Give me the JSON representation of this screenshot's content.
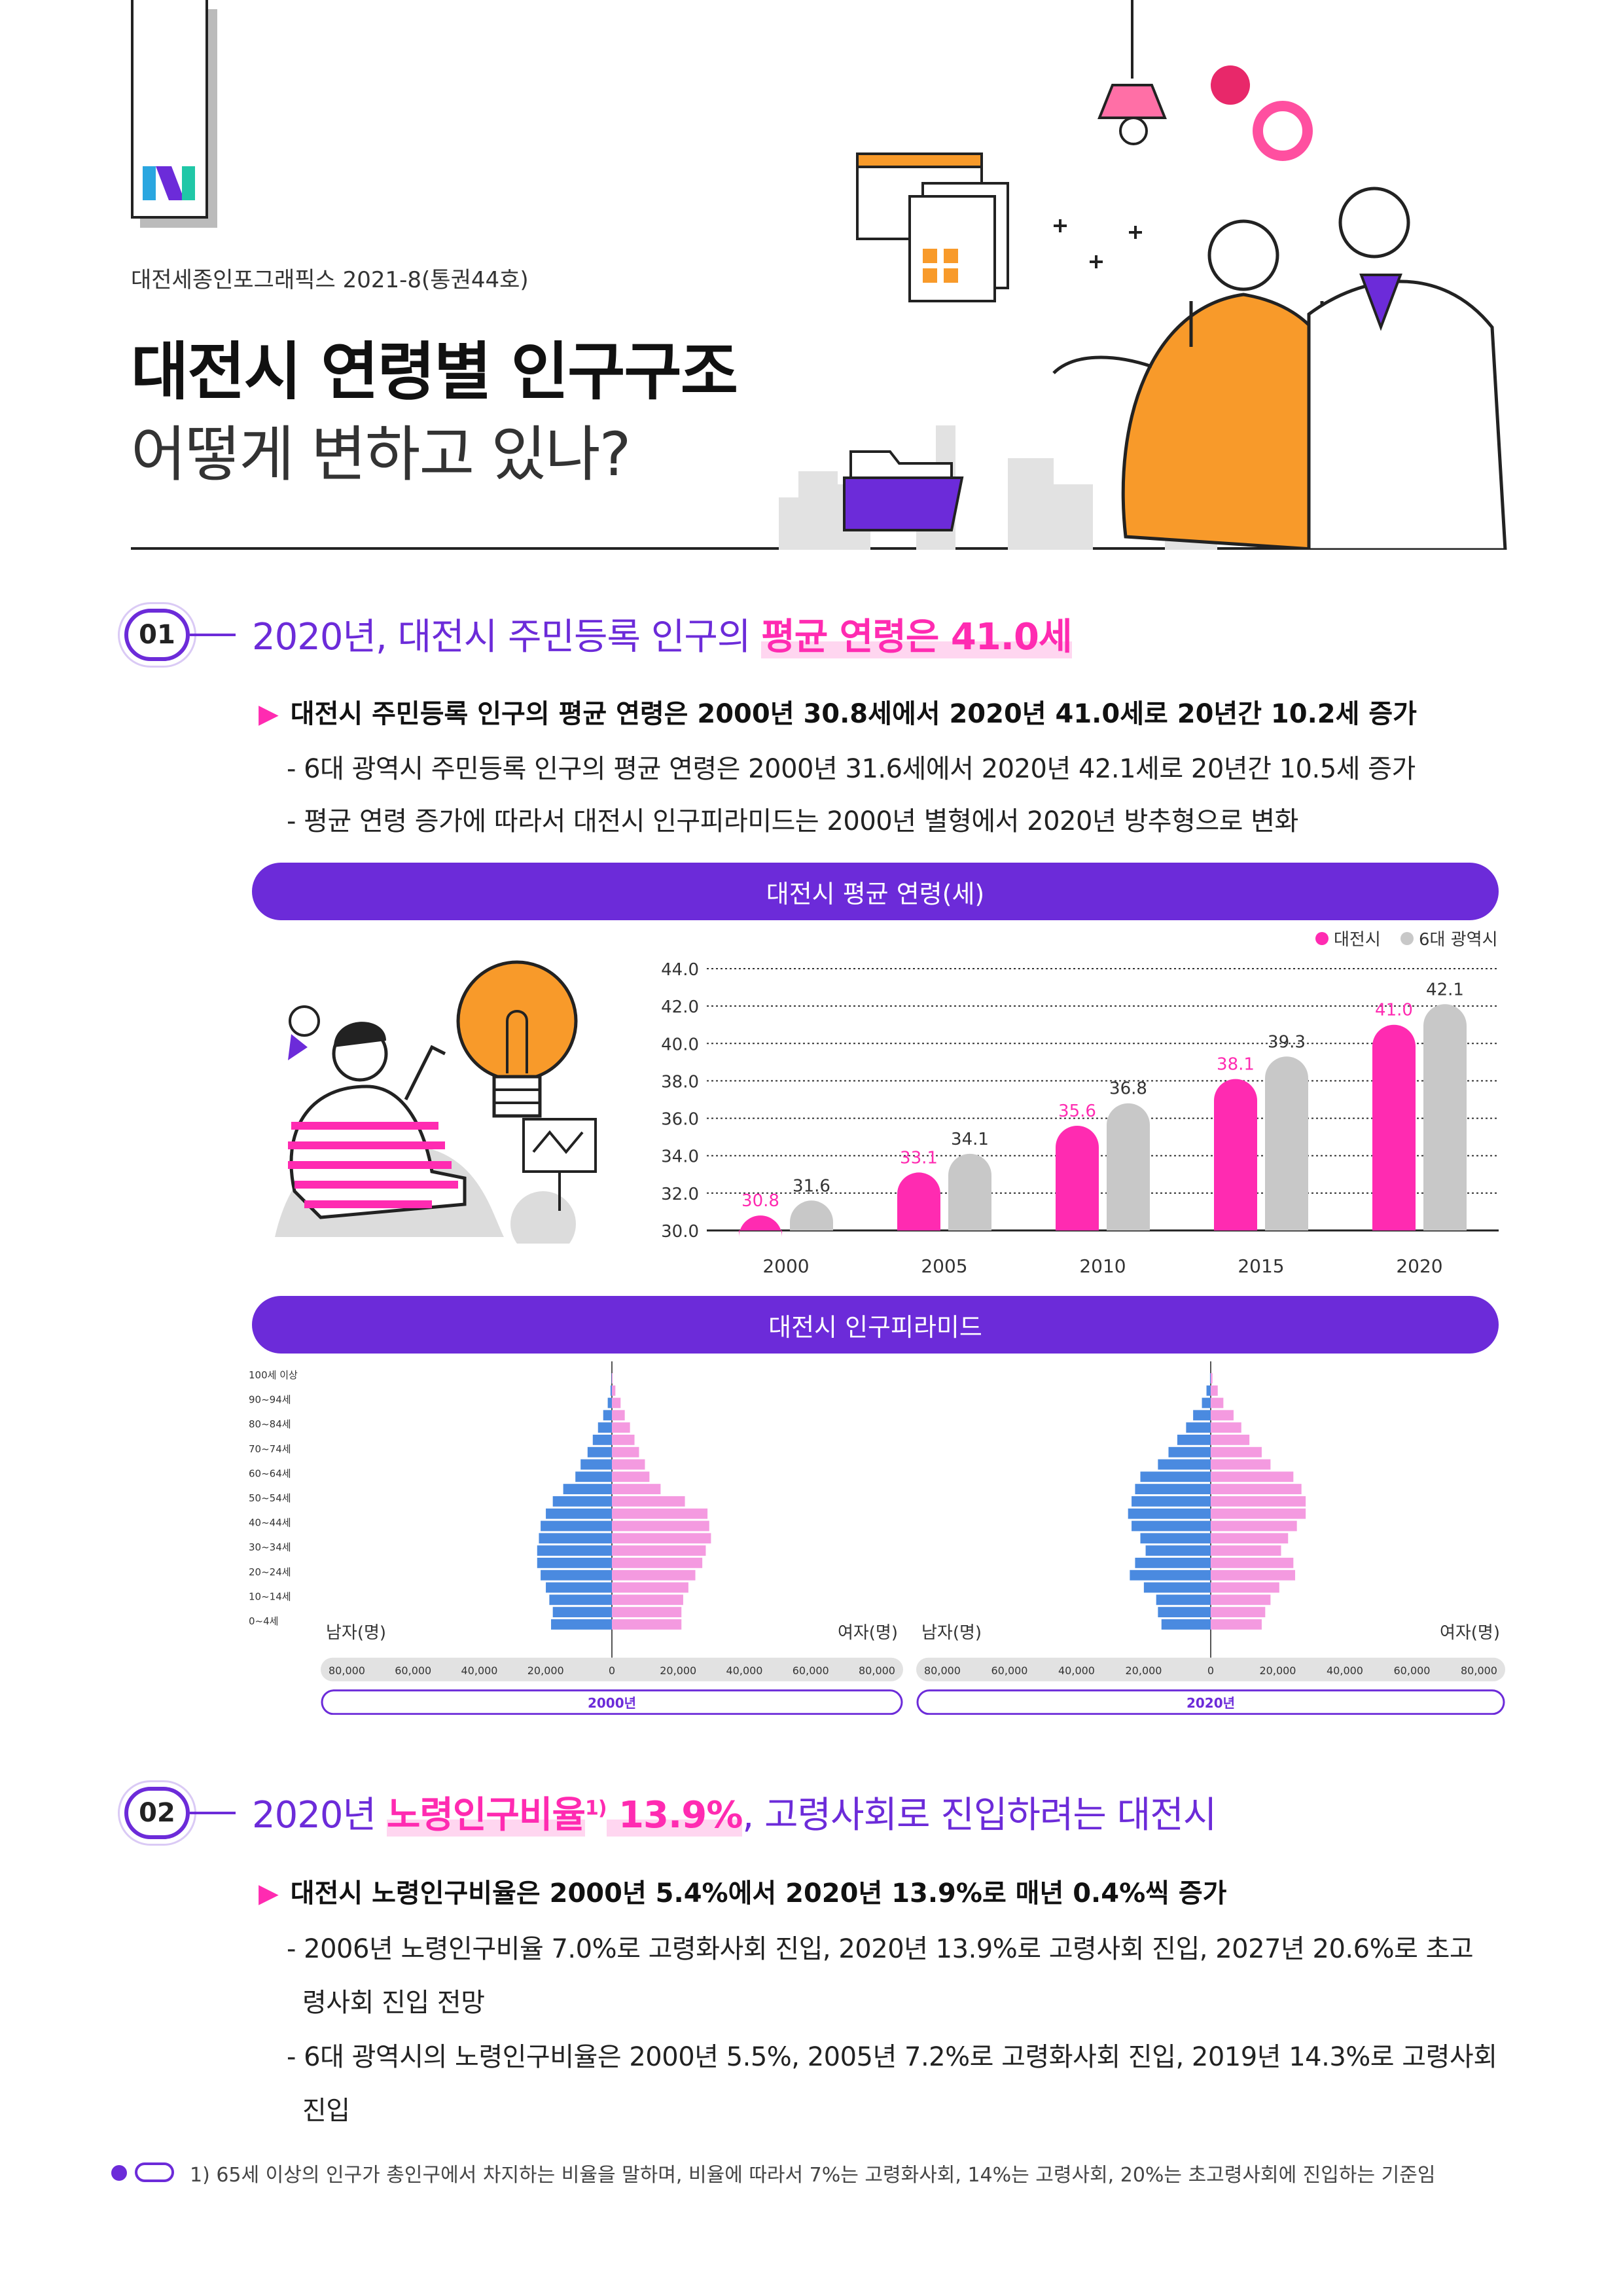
{
  "header": {
    "series": "대전세종인포그래픽스 2021-8(통권44호)",
    "title_main": "대전시 연령별 인구구조",
    "title_sub": "어떻게 변하고 있나?"
  },
  "section1": {
    "number": "01",
    "head_plain": "2020년, 대전시 주민등록 인구의 ",
    "head_highlight": "평균 연령은 41.0세",
    "bullet_main": "대전시 주민등록 인구의 평균 연령은 2000년 30.8세에서 2020년 41.0세로 20년간 10.2세 증가",
    "bullet_sub1": "- 6대 광역시 주민등록 인구의 평균 연령은 2000년 31.6세에서 2020년 42.1세로 20년간 10.5세 증가",
    "bullet_sub2": "- 평균 연령 증가에 따라서 대전시 인구피라미드는 2000년 별형에서 2020년 방추형으로 변화"
  },
  "section2": {
    "number": "02",
    "head_plain1": "2020년 ",
    "head_highlight": "노령인구비율",
    "head_sup": "1)",
    "head_highlight2": " 13.9%",
    "head_plain2": ", 고령사회로 진입하려는 대전시",
    "bullet_main": "대전시 노령인구비율은 2000년 5.4%에서 2020년 13.9%로 매년 0.4%씩 증가",
    "bullet_sub1a": "- 2006년 노령인구비율 7.0%로 고령화사회 진입, 2020년 13.9%로 고령사회 진입, 2027년 20.6%로 초고",
    "bullet_sub1b": "령사회 진입 전망",
    "bullet_sub2a": "- 6대 광역시의 노령인구비율은 2000년 5.5%, 2005년 7.2%로 고령화사회 진입, 2019년 14.3%로 고령사회",
    "bullet_sub2b": "진입"
  },
  "footnote": "1) 65세 이상의 인구가 총인구에서 차지하는 비율을 말하며, 비율에 따라서 7%는 고령화사회, 14%는 고령사회, 20%는 초고령사회에 진입하는 기준임",
  "colors": {
    "purple": "#6c2bd9",
    "pink": "#ff2bb1",
    "gray": "#c8c8c8",
    "male": "#4a8ae0",
    "female": "#f49ae0"
  },
  "chart_data": [
    {
      "type": "bar",
      "title": "대전시 평균 연령(세)",
      "categories": [
        "2000",
        "2005",
        "2010",
        "2015",
        "2020"
      ],
      "series": [
        {
          "name": "대전시",
          "values": [
            30.8,
            33.1,
            35.6,
            38.1,
            41.0
          ]
        },
        {
          "name": "6대 광역시",
          "values": [
            31.6,
            34.1,
            36.8,
            39.3,
            42.1
          ]
        }
      ],
      "ylim": [
        30.0,
        44.0
      ],
      "yticks": [
        "44.0",
        "42.0",
        "40.0",
        "38.0",
        "36.0",
        "34.0",
        "32.0",
        "30.0"
      ],
      "legend": "top-right",
      "grid": true
    },
    {
      "type": "bar",
      "title": "대전시 인구피라미드",
      "age_groups": [
        "100세 이상",
        "90~94세",
        "80~84세",
        "70~74세",
        "60~64세",
        "50~54세",
        "40~44세",
        "30~34세",
        "20~24세",
        "10~14세",
        "0~4세"
      ],
      "xtick_labels": [
        "80,000",
        "60,000",
        "40,000",
        "20,000",
        "0",
        "20,000",
        "40,000",
        "60,000",
        "80,000"
      ],
      "xlim": [
        -80000,
        80000
      ],
      "male_label": "남자(명)",
      "female_label": "여자(명)",
      "panels": [
        {
          "name": "2000년",
          "male": [
            100,
            400,
            1200,
            2500,
            4000,
            5500,
            7000,
            9000,
            10500,
            14000,
            17000,
            19000,
            20500,
            21000,
            21500,
            21500,
            20500,
            19000,
            18000,
            17000,
            17500
          ],
          "female": [
            200,
            1000,
            2500,
            3700,
            5200,
            6500,
            7800,
            9500,
            10800,
            14000,
            21000,
            27500,
            28000,
            28500,
            27000,
            26000,
            24000,
            22000,
            20500,
            20000,
            20000
          ]
        },
        {
          "name": "2020년",
          "male": [
            200,
            1200,
            2500,
            5000,
            7000,
            9500,
            12000,
            15000,
            20000,
            21500,
            22500,
            23500,
            22500,
            20000,
            18500,
            21500,
            23000,
            19000,
            15500,
            15000,
            14000
          ],
          "female": [
            500,
            2000,
            3600,
            6500,
            8700,
            11000,
            14500,
            17000,
            23500,
            25800,
            27000,
            27000,
            24500,
            22000,
            20000,
            23500,
            24000,
            19500,
            17000,
            15500,
            14500
          ]
        }
      ]
    }
  ]
}
